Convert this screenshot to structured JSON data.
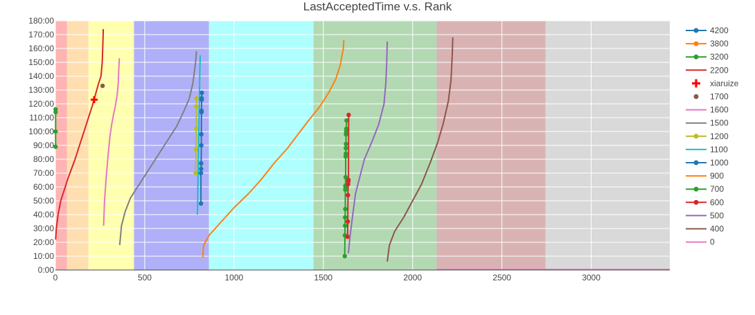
{
  "chart_data": {
    "type": "line",
    "title": "LastAcceptedTime v.s. Rank",
    "xlabel": "",
    "ylabel": "",
    "xlim": [
      0,
      3440
    ],
    "ylim": [
      0,
      180
    ],
    "x_ticks": [
      {
        "value": 0,
        "label": "0"
      },
      {
        "value": 500,
        "label": "500"
      },
      {
        "value": 1000,
        "label": "1000"
      },
      {
        "value": 1500,
        "label": "1500"
      },
      {
        "value": 2000,
        "label": "2000"
      },
      {
        "value": 2500,
        "label": "2500"
      },
      {
        "value": 3000,
        "label": "3000"
      }
    ],
    "y_ticks": [
      {
        "value": 0,
        "label": "0:00"
      },
      {
        "value": 10,
        "label": "10:00"
      },
      {
        "value": 20,
        "label": "20:00"
      },
      {
        "value": 30,
        "label": "30:00"
      },
      {
        "value": 40,
        "label": "40:00"
      },
      {
        "value": 50,
        "label": "50:00"
      },
      {
        "value": 60,
        "label": "60:00"
      },
      {
        "value": 70,
        "label": "70:00"
      },
      {
        "value": 80,
        "label": "80:00"
      },
      {
        "value": 90,
        "label": "90:00"
      },
      {
        "value": 100,
        "label": "100:00"
      },
      {
        "value": 110,
        "label": "110:00"
      },
      {
        "value": 120,
        "label": "120:00"
      },
      {
        "value": 130,
        "label": "130:00"
      },
      {
        "value": 140,
        "label": "140:00"
      },
      {
        "value": 150,
        "label": "150:00"
      },
      {
        "value": 160,
        "label": "160:00"
      },
      {
        "value": 170,
        "label": "170:00"
      },
      {
        "value": 180,
        "label": "180:00"
      }
    ],
    "grid": true,
    "legend_position": "right",
    "bands": [
      {
        "x0": 0,
        "x1": 65,
        "color": "#ffb3b3"
      },
      {
        "x0": 65,
        "x1": 185,
        "color": "#ffdfb0"
      },
      {
        "x0": 185,
        "x1": 440,
        "color": "#ffffb0"
      },
      {
        "x0": 440,
        "x1": 860,
        "color": "#b0b0f8"
      },
      {
        "x0": 860,
        "x1": 1445,
        "color": "#b0ffff"
      },
      {
        "x0": 1445,
        "x1": 2135,
        "color": "#b3d9b3"
      },
      {
        "x0": 2135,
        "x1": 2745,
        "color": "#d9b3b3"
      },
      {
        "x0": 2745,
        "x1": 3440,
        "color": "#d9d9d9"
      }
    ],
    "series": [
      {
        "name": "4200",
        "color": "#1f77b4",
        "mode": "lines+markers",
        "x": [],
        "y": []
      },
      {
        "name": "3800",
        "color": "#ff7f0e",
        "mode": "lines+markers",
        "x": [],
        "y": []
      },
      {
        "name": "3200",
        "color": "#2ca02c",
        "mode": "lines+markers",
        "x": [
          1,
          1,
          1,
          1
        ],
        "y": [
          89,
          100,
          114,
          116
        ]
      },
      {
        "name": "2200",
        "color": "#d62728",
        "mode": "lines",
        "x": [
          1,
          5,
          15,
          30,
          50,
          70,
          90,
          110,
          130,
          160,
          185,
          205,
          225,
          240,
          255,
          262,
          265,
          267,
          268
        ],
        "y": [
          22,
          30,
          40,
          50,
          58,
          66,
          73,
          80,
          88,
          100,
          110,
          118,
          127,
          134,
          140,
          150,
          160,
          168,
          174
        ]
      },
      {
        "name": "xiaruize",
        "color": "#ff0000",
        "mode": "markers",
        "marker": "cross",
        "x": [
          217
        ],
        "y": [
          123
        ]
      },
      {
        "name": "1700",
        "color": "#8c564b",
        "mode": "markers",
        "x": [
          264
        ],
        "y": [
          133
        ]
      },
      {
        "name": "1600",
        "color": "#e377c2",
        "mode": "lines",
        "x": [
          270,
          275,
          285,
          295,
          305,
          315,
          325,
          335,
          345,
          352,
          355,
          358
        ],
        "y": [
          32,
          50,
          68,
          83,
          96,
          105,
          112,
          118,
          126,
          135,
          145,
          153
        ]
      },
      {
        "name": "1500",
        "color": "#7f7f7f",
        "mode": "lines",
        "x": [
          360,
          370,
          390,
          420,
          450,
          480,
          520,
          560,
          600,
          640,
          680,
          720,
          750,
          770,
          785,
          790
        ],
        "y": [
          18,
          32,
          42,
          52,
          58,
          64,
          72,
          80,
          88,
          96,
          104,
          115,
          124,
          135,
          150,
          158
        ]
      },
      {
        "name": "1200",
        "color": "#bcbd22",
        "mode": "lines+markers",
        "x": [
          785,
          787,
          788,
          789,
          790
        ],
        "y": [
          70,
          87,
          102,
          118,
          124
        ]
      },
      {
        "name": "1100",
        "color": "#17becf",
        "mode": "lines",
        "x": [
          795,
          797,
          799,
          801,
          803,
          805,
          807,
          809,
          811
        ],
        "y": [
          40,
          55,
          70,
          85,
          100,
          115,
          130,
          145,
          155
        ]
      },
      {
        "name": "1000",
        "color": "#1f77b4",
        "mode": "lines+markers",
        "x": [
          815,
          815,
          816,
          816,
          817,
          817,
          818,
          818,
          819,
          819,
          820
        ],
        "y": [
          48,
          70,
          73,
          77,
          90,
          98,
          114,
          115,
          123,
          124,
          128
        ]
      },
      {
        "name": "900",
        "color": "#ff7f0e",
        "mode": "lines",
        "x": [
          825,
          830,
          860,
          930,
          1000,
          1080,
          1150,
          1230,
          1300,
          1370,
          1430,
          1480,
          1530,
          1570,
          1595,
          1605,
          1612,
          1615
        ],
        "y": [
          9,
          18,
          25,
          35,
          45,
          55,
          65,
          78,
          88,
          100,
          110,
          118,
          128,
          138,
          148,
          155,
          160,
          166
        ]
      },
      {
        "name": "700",
        "color": "#2ca02c",
        "mode": "lines+markers",
        "x": [
          1620,
          1621,
          1622,
          1622,
          1623,
          1623,
          1624,
          1624,
          1625,
          1625,
          1626,
          1626,
          1627,
          1627,
          1628,
          1629,
          1630
        ],
        "y": [
          10,
          25,
          32,
          38,
          44,
          58,
          60,
          61,
          67,
          82,
          84,
          88,
          91,
          98,
          100,
          102,
          108
        ]
      },
      {
        "name": "600",
        "color": "#d62728",
        "mode": "lines+markers",
        "x": [
          1636,
          1637,
          1638,
          1639,
          1640,
          1641,
          1642
        ],
        "y": [
          24,
          35,
          54,
          62,
          64,
          65,
          112
        ]
      },
      {
        "name": "500",
        "color": "#9467bd",
        "mode": "lines",
        "x": [
          1640,
          1650,
          1665,
          1680,
          1700,
          1730,
          1770,
          1810,
          1840,
          1850,
          1855,
          1858
        ],
        "y": [
          12,
          25,
          40,
          55,
          65,
          80,
          92,
          105,
          120,
          135,
          150,
          165
        ]
      },
      {
        "name": "400",
        "color": "#8c564b",
        "mode": "lines",
        "x": [
          1858,
          1870,
          1900,
          1950,
          2000,
          2050,
          2100,
          2140,
          2170,
          2200,
          2215,
          2222,
          2225
        ],
        "y": [
          6,
          18,
          28,
          38,
          50,
          62,
          78,
          92,
          105,
          122,
          137,
          155,
          168
        ]
      },
      {
        "name": "0",
        "color": "#e377c2",
        "mode": "lines",
        "x": [
          2135,
          3440
        ],
        "y": [
          0.3,
          0.3
        ]
      }
    ]
  }
}
